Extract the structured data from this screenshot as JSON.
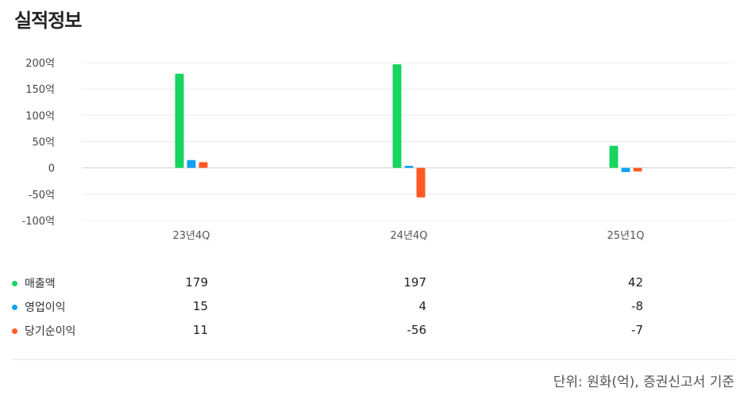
{
  "title": "실적정보",
  "chart_data": {
    "type": "bar",
    "categories": [
      "23년4Q",
      "24년4Q",
      "25년1Q"
    ],
    "series": [
      {
        "name": "매출액",
        "color": "#18d460",
        "values": [
          179,
          197,
          42
        ],
        "display": [
          "179",
          "197",
          "42"
        ]
      },
      {
        "name": "영업이익",
        "color": "#14a1f2",
        "values": [
          15,
          4,
          -8
        ],
        "display": [
          "15",
          "4",
          "-8"
        ]
      },
      {
        "name": "당기순이익",
        "color": "#ff5a24",
        "values": [
          11,
          -56,
          -7
        ],
        "display": [
          "11",
          "-56",
          "-7"
        ]
      }
    ],
    "yticks": [
      200,
      150,
      100,
      50,
      0,
      -50,
      -100
    ],
    "ytick_labels": [
      "200억",
      "150억",
      "100억",
      "50억",
      "0",
      "-50억",
      "-100억"
    ],
    "ylim": [
      -100,
      200
    ],
    "grid": true
  },
  "footnote": "단위: 원화(억), 증권신고서 기준"
}
